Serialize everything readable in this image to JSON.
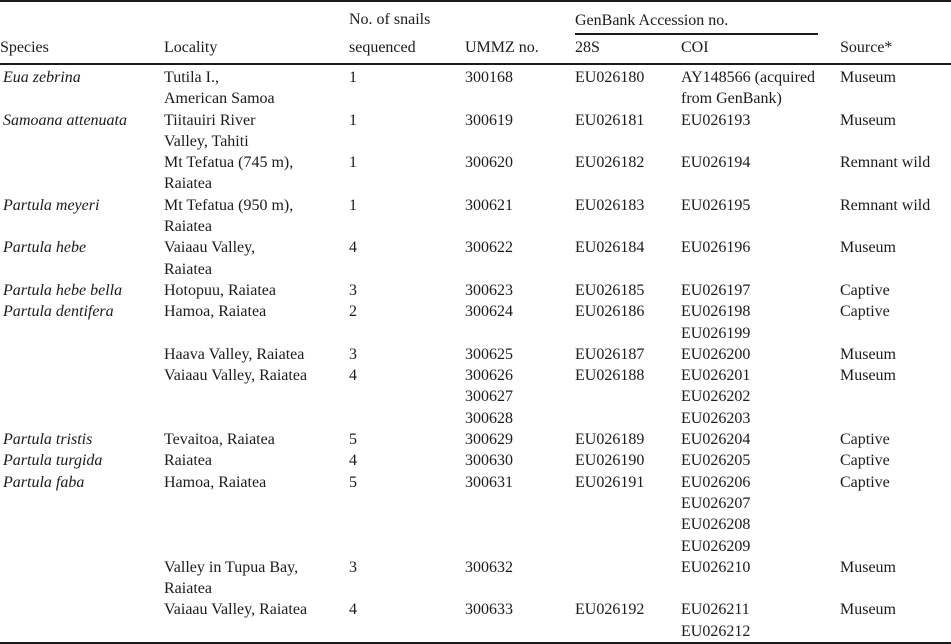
{
  "table": {
    "headers": {
      "species": "Species",
      "locality": "Locality",
      "snails_line1": "No. of snails",
      "snails_line2": "sequenced",
      "ummz": "UMMZ no.",
      "genbank_group": "GenBank Accession no.",
      "s28": "28S",
      "coi": "COI",
      "source": "Source*"
    },
    "rows": [
      {
        "species": "Eua zebrina",
        "locality": [
          "Tutila I.,",
          "American Samoa"
        ],
        "n": "1",
        "ummz": [
          "300168"
        ],
        "s28": [
          "EU026180"
        ],
        "coi": [
          "AY148566 (acquired",
          "from GenBank)"
        ],
        "source": "Museum"
      },
      {
        "species": "Samoana attenuata",
        "locality": [
          "Tiitauiri River",
          "Valley, Tahiti"
        ],
        "n": "1",
        "ummz": [
          "300619"
        ],
        "s28": [
          "EU026181"
        ],
        "coi": [
          "EU026193"
        ],
        "source": "Museum"
      },
      {
        "species": "",
        "locality": [
          "Mt Tefatua (745 m),",
          "Raiatea"
        ],
        "n": "1",
        "ummz": [
          "300620"
        ],
        "s28": [
          "EU026182"
        ],
        "coi": [
          "EU026194"
        ],
        "source": "Remnant wild"
      },
      {
        "species": "Partula meyeri",
        "locality": [
          "Mt Tefatua (950 m),",
          "Raiatea"
        ],
        "n": "1",
        "ummz": [
          "300621"
        ],
        "s28": [
          "EU026183"
        ],
        "coi": [
          "EU026195"
        ],
        "source": "Remnant wild"
      },
      {
        "species": "Partula hebe",
        "locality": [
          "Vaiaau Valley,",
          "Raiatea"
        ],
        "n": "4",
        "ummz": [
          "300622"
        ],
        "s28": [
          "EU026184"
        ],
        "coi": [
          "EU026196"
        ],
        "source": "Museum"
      },
      {
        "species": "Partula hebe bella",
        "locality": [
          "Hotopuu, Raiatea"
        ],
        "n": "3",
        "ummz": [
          "300623"
        ],
        "s28": [
          "EU026185"
        ],
        "coi": [
          "EU026197"
        ],
        "source": "Captive"
      },
      {
        "species": "Partula dentifera",
        "locality": [
          "Hamoa, Raiatea"
        ],
        "n": "2",
        "ummz": [
          "300624"
        ],
        "s28": [
          "EU026186"
        ],
        "coi": [
          "EU026198",
          "EU026199"
        ],
        "source": "Captive"
      },
      {
        "species": "",
        "locality": [
          "Haava Valley, Raiatea"
        ],
        "n": "3",
        "ummz": [
          "300625"
        ],
        "s28": [
          "EU026187"
        ],
        "coi": [
          "EU026200"
        ],
        "source": "Museum"
      },
      {
        "species": "",
        "locality": [
          "Vaiaau Valley, Raiatea"
        ],
        "n": "4",
        "ummz": [
          "300626",
          "300627",
          "300628"
        ],
        "s28": [
          "EU026188"
        ],
        "coi": [
          "EU026201",
          "EU026202",
          "EU026203"
        ],
        "source": "Museum"
      },
      {
        "species": "Partula tristis",
        "locality": [
          "Tevaitoa, Raiatea"
        ],
        "n": "5",
        "ummz": [
          "300629"
        ],
        "s28": [
          "EU026189"
        ],
        "coi": [
          "EU026204"
        ],
        "source": "Captive"
      },
      {
        "species": "Partula turgida",
        "locality": [
          "Raiatea"
        ],
        "n": "4",
        "ummz": [
          "300630"
        ],
        "s28": [
          "EU026190"
        ],
        "coi": [
          "EU026205"
        ],
        "source": "Captive"
      },
      {
        "species": "Partula faba",
        "locality": [
          "Hamoa, Raiatea"
        ],
        "n": "5",
        "ummz": [
          "300631"
        ],
        "s28": [
          "EU026191"
        ],
        "coi": [
          "EU026206",
          "EU026207",
          "EU026208",
          "EU026209"
        ],
        "source": "Captive"
      },
      {
        "species": "",
        "locality": [
          "Valley in Tupua Bay,",
          "Raiatea"
        ],
        "n": "3",
        "ummz": [
          "300632"
        ],
        "s28": [],
        "coi": [
          "EU026210"
        ],
        "source": "Museum"
      },
      {
        "species": "",
        "locality": [
          "Vaiaau Valley, Raiatea"
        ],
        "n": "4",
        "ummz": [
          "300633"
        ],
        "s28": [
          "EU026192"
        ],
        "coi": [
          "EU026211",
          "EU026212"
        ],
        "source": "Museum"
      }
    ]
  },
  "colors": {
    "text": "#1b1b1b",
    "rule": "#1b1b1b",
    "background": "#ffffff"
  }
}
